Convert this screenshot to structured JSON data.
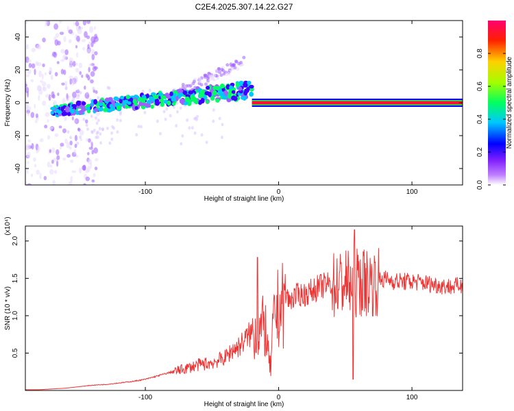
{
  "title": "C2E4.2025.307.14.22.G27",
  "colors": {
    "snr_line": "#ee3333",
    "axis": "#000000",
    "background": "#ffffff"
  },
  "chart_data": [
    {
      "type": "heatmap",
      "name": "spectrogram",
      "xlabel": "Height of straight line (km)",
      "ylabel": "Frequency (Hz)",
      "xlim": [
        -190,
        138
      ],
      "ylim": [
        -50,
        50
      ],
      "xticks": [
        -100,
        0,
        100
      ],
      "xtick_labels": [
        "-100",
        "0",
        "100"
      ],
      "yticks": [
        -40,
        -20,
        0,
        20,
        40
      ],
      "ytick_labels": [
        "-40",
        "-20",
        "0",
        "20",
        "40"
      ],
      "colorbar": {
        "label": "Normalized spectral amplitude",
        "range": [
          0,
          1
        ],
        "ticks": [
          0.0,
          0.2,
          0.4,
          0.6,
          0.8
        ],
        "tick_labels": [
          "0.0",
          "0.2",
          "0.4",
          "0.6",
          "0.8"
        ],
        "colormap": [
          "#ffffff",
          "#9040ff",
          "#0000ff",
          "#00d0ff",
          "#00ff60",
          "#a0ff00",
          "#ffd000",
          "#ff3000",
          "#ff0060"
        ]
      },
      "features": [
        {
          "name": "broadband noise (low heights)",
          "x_range": [
            -190,
            -150
          ],
          "f_range": [
            -50,
            50
          ],
          "amplitude": 0.15
        },
        {
          "name": "noisy tone, rising",
          "x_range": [
            -170,
            -20
          ],
          "f_start": -5,
          "f_end": 8,
          "amplitude": 0.35
        },
        {
          "name": "upper branch",
          "x_range": [
            -80,
            -25
          ],
          "f_start": 5,
          "f_end": 25,
          "amplitude": 0.1
        },
        {
          "name": "stable tone",
          "x_range": [
            -20,
            138
          ],
          "f": 0,
          "amplitude": 0.95
        }
      ]
    },
    {
      "type": "line",
      "name": "snr",
      "xlabel": "Height of straight line (km)",
      "ylabel": "SNR (10 * v/v)",
      "yscale_label": "(x10⁴)",
      "xlim": [
        -190,
        138
      ],
      "ylim": [
        0,
        2.2
      ],
      "xticks": [
        -100,
        0,
        100
      ],
      "xtick_labels": [
        "-100",
        "0",
        "100"
      ],
      "yticks": [
        0.5,
        1.0,
        1.5,
        2.0
      ],
      "ytick_labels": [
        "0.5",
        "1.0",
        "1.5",
        "2.0"
      ],
      "series": [
        {
          "name": "SNR",
          "x": [
            -190,
            -180,
            -170,
            -160,
            -150,
            -140,
            -130,
            -120,
            -110,
            -100,
            -90,
            -80,
            -70,
            -60,
            -50,
            -40,
            -35,
            -30,
            -25,
            -20,
            -15,
            -10,
            -8,
            -6,
            -4,
            -2,
            0,
            2,
            4,
            6,
            8,
            10,
            15,
            20,
            25,
            30,
            40,
            50,
            55,
            60,
            70,
            80,
            90,
            100,
            110,
            120,
            130,
            138
          ],
          "y": [
            0.01,
            0.01,
            0.02,
            0.03,
            0.05,
            0.07,
            0.08,
            0.1,
            0.12,
            0.15,
            0.2,
            0.25,
            0.3,
            0.35,
            0.38,
            0.45,
            0.55,
            0.6,
            0.7,
            0.8,
            0.85,
            0.9,
            0.5,
            0.3,
            0.9,
            1.1,
            1.15,
            1.2,
            1.2,
            1.3,
            1.2,
            1.25,
            1.3,
            1.3,
            1.35,
            1.4,
            1.45,
            1.5,
            1.45,
            1.5,
            1.5,
            1.5,
            1.47,
            1.47,
            1.45,
            1.42,
            1.4,
            1.42
          ]
        }
      ],
      "notable": [
        {
          "x": 56,
          "y": 0.15,
          "note": "sharp dip"
        },
        {
          "x": 57,
          "y": 2.15,
          "note": "peak"
        },
        {
          "x": -16,
          "y": 1.78,
          "note": "spike"
        }
      ]
    }
  ]
}
